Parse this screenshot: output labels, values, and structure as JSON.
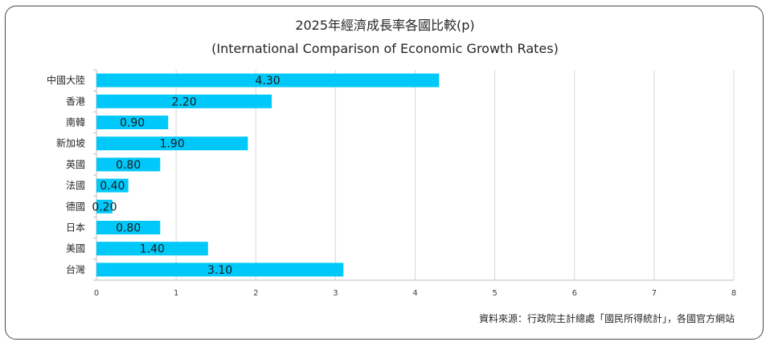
{
  "chart_data": {
    "type": "bar",
    "orientation": "horizontal",
    "title": "2025年經濟成長率各國比較(p)",
    "subtitle": "(International Comparison of Economic Growth Rates)",
    "categories": [
      "中國大陸",
      "香港",
      "南韓",
      "新加坡",
      "英國",
      "法國",
      "德國",
      "日本",
      "美國",
      "台灣"
    ],
    "values": [
      4.3,
      2.2,
      0.9,
      1.9,
      0.8,
      0.4,
      0.2,
      0.8,
      1.4,
      3.1
    ],
    "data_labels": [
      "4.30",
      "2.20",
      "0.90",
      "1.90",
      "0.80",
      "0.40",
      "0.20",
      "0.80",
      "1.40",
      "3.10"
    ],
    "xlim": [
      0,
      8
    ],
    "x_ticks": [
      0,
      1,
      2,
      3,
      4,
      5,
      6,
      7,
      8
    ],
    "xlabel": "",
    "ylabel": "",
    "grid": "vertical",
    "legend": "none",
    "bar_color": "#00c8f8",
    "grid_color": "#d9d9d9",
    "axis_color": "#bfbfbf"
  },
  "source_note": "資料來源：行政院主計總處「國民所得統計」，各國官方網站"
}
